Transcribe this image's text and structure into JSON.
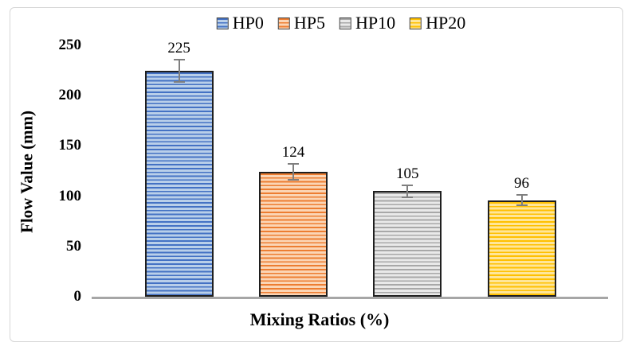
{
  "frame": {
    "background": "#ffffff",
    "border_color": "#d6d6d6"
  },
  "chart_data": {
    "type": "bar",
    "title": "",
    "xlabel": "Mixing Ratios (%)",
    "ylabel": "Flow Value (mm)",
    "categories": [
      "HP0",
      "HP5",
      "HP10",
      "HP20"
    ],
    "values": [
      225,
      124,
      105,
      96
    ],
    "data_labels": [
      "225",
      "124",
      "105",
      "96"
    ],
    "error_bars": [
      11,
      8,
      6,
      5
    ],
    "ylim": [
      0,
      250
    ],
    "yticks": [
      0,
      50,
      100,
      150,
      200,
      250
    ],
    "ytick_labels": [
      "0",
      "50",
      "100",
      "150",
      "200",
      "250"
    ],
    "grid": false,
    "legend_position": "top-center",
    "pattern": "horizontal-stripes",
    "series_colors": [
      {
        "category": "HP0",
        "stripe": "#4472c4",
        "fill": "#b9cfe9",
        "border": "#1f1f1f"
      },
      {
        "category": "HP5",
        "stripe": "#ed7d31",
        "fill": "#fbd5b5",
        "border": "#1f1f1f"
      },
      {
        "category": "HP10",
        "stripe": "#a8a8a8",
        "fill": "#e9e9e9",
        "border": "#1f1f1f"
      },
      {
        "category": "HP20",
        "stripe": "#ffc000",
        "fill": "#ffe699",
        "border": "#1f1f1f"
      }
    ],
    "error_bar_color": "#7f7f7f",
    "axis_line_color": "#a6a6a6"
  }
}
